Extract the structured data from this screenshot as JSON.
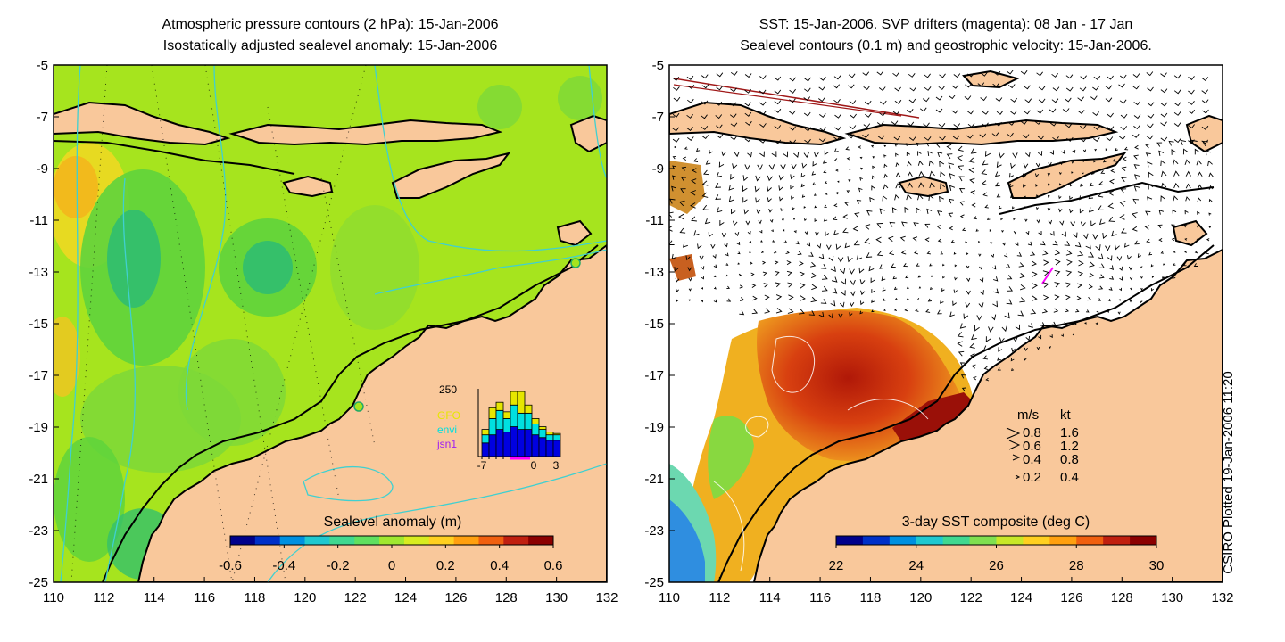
{
  "left_panel": {
    "title_line1": "Atmospheric pressure contours (2 hPa): 15-Jan-2006",
    "title_line2": "Isostatically adjusted sealevel anomaly: 15-Jan-2006",
    "colorbar": {
      "label": "Sealevel anomaly (m)",
      "ticks": [
        "-0.6",
        "-0.4",
        "-0.2",
        "0",
        "0.2",
        "0.4",
        "0.6"
      ],
      "colors": [
        "#00008b",
        "#0030c8",
        "#0090e0",
        "#20c8d0",
        "#40d890",
        "#60e060",
        "#a0e830",
        "#d8ec20",
        "#ffd020",
        "#ffa010",
        "#f06010",
        "#c02010",
        "#8b0000"
      ]
    },
    "histogram": {
      "ymax_label": "250",
      "x_ticks": [
        "-7",
        "0",
        "3"
      ],
      "legend": [
        {
          "name": "GFO",
          "color": "#e6e600"
        },
        {
          "name": "envi",
          "color": "#00e0e0"
        },
        {
          "name": "jsn1",
          "color": "#a020f0"
        }
      ],
      "bins": [
        {
          "gfo": 20,
          "envi": 30,
          "jsn1": 50
        },
        {
          "gfo": 40,
          "envi": 60,
          "jsn1": 80
        },
        {
          "gfo": 30,
          "envi": 70,
          "jsn1": 100
        },
        {
          "gfo": 25,
          "envi": 50,
          "jsn1": 90
        },
        {
          "gfo": 50,
          "envi": 80,
          "jsn1": 110
        },
        {
          "gfo": 80,
          "envi": 60,
          "jsn1": 100
        },
        {
          "gfo": 30,
          "envi": 60,
          "jsn1": 100
        },
        {
          "gfo": 20,
          "envi": 40,
          "jsn1": 80
        },
        {
          "gfo": 10,
          "envi": 30,
          "jsn1": 70
        },
        {
          "gfo": 10,
          "envi": 20,
          "jsn1": 60
        },
        {
          "gfo": 5,
          "envi": 20,
          "jsn1": 60
        }
      ]
    }
  },
  "right_panel": {
    "title_line1": "SST: 15-Jan-2006. SVP drifters (magenta): 08 Jan - 17 Jan",
    "title_line2": "Sealevel contours (0.1 m) and geostrophic velocity: 15-Jan-2006.",
    "colorbar": {
      "label": "3-day SST composite (deg C)",
      "ticks": [
        "22",
        "24",
        "26",
        "28",
        "30"
      ],
      "colors": [
        "#00008b",
        "#0030c8",
        "#0090e0",
        "#20c8d0",
        "#40d890",
        "#80e050",
        "#c8e828",
        "#ffd020",
        "#ffa010",
        "#f06010",
        "#c02010",
        "#8b0000"
      ]
    },
    "velocity_legend": {
      "header_ms": "m/s",
      "header_kt": "kt",
      "rows": [
        {
          "ms": "0.8",
          "kt": "1.6"
        },
        {
          "ms": "0.6",
          "kt": "1.2"
        },
        {
          "ms": "0.4",
          "kt": "0.8"
        },
        {
          "ms": "0.2",
          "kt": "0.4"
        }
      ]
    }
  },
  "axes": {
    "x_ticks": [
      "110",
      "112",
      "114",
      "116",
      "118",
      "120",
      "122",
      "124",
      "126",
      "128",
      "130",
      "132"
    ],
    "y_ticks": [
      "-5",
      "-7",
      "-9",
      "-11",
      "-13",
      "-15",
      "-17",
      "-19",
      "-21",
      "-23",
      "-25"
    ],
    "lon_range": [
      110,
      132
    ],
    "lat_range": [
      -25,
      -5
    ]
  },
  "colors": {
    "land": "#f9c89b",
    "ocean_base": "#a6e41e",
    "coast": "#000000",
    "pressure_contour": "#40d0d0"
  },
  "side_label": "CSIRO Plotted 19-Jan-2006 11:20"
}
